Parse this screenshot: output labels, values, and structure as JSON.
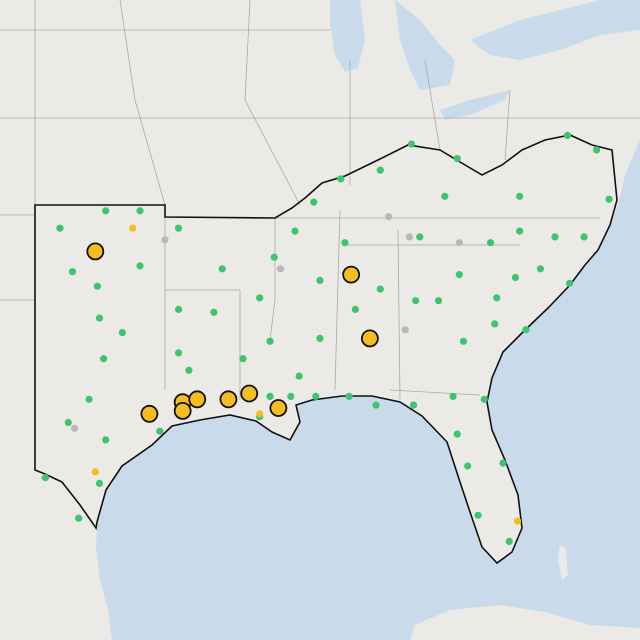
{
  "map": {
    "colors": {
      "green": "#3cc46e",
      "gray": "#b9b9b9",
      "yellow": "#f5bd1f",
      "yellow_large": "#f5bd1f"
    },
    "points": {
      "green": [
        [
          -101.8,
          36.2
        ],
        [
          -99.6,
          36.8
        ],
        [
          -97.95,
          36.8
        ],
        [
          -96.1,
          36.2
        ],
        [
          -101.2,
          34.7
        ],
        [
          -100.0,
          34.2
        ],
        [
          -97.95,
          34.9
        ],
        [
          -94.0,
          34.8
        ],
        [
          -96.1,
          33.4
        ],
        [
          -94.4,
          33.3
        ],
        [
          -99.9,
          33.1
        ],
        [
          -98.8,
          32.6
        ],
        [
          -99.7,
          31.7
        ],
        [
          -96.1,
          31.9
        ],
        [
          -100.4,
          30.3
        ],
        [
          -101.4,
          29.5
        ],
        [
          -99.6,
          28.9
        ],
        [
          -99.9,
          27.4
        ],
        [
          -102.5,
          27.6
        ],
        [
          -100.9,
          26.2
        ],
        [
          -97.0,
          29.2
        ],
        [
          -95.6,
          31.3
        ],
        [
          -93.0,
          31.7
        ],
        [
          -91.7,
          32.3
        ],
        [
          -92.2,
          33.8
        ],
        [
          -91.5,
          35.2
        ],
        [
          -90.5,
          36.1
        ],
        [
          -89.6,
          37.1
        ],
        [
          -88.3,
          37.9
        ],
        [
          -86.4,
          38.2
        ],
        [
          -84.9,
          39.1
        ],
        [
          -82.7,
          38.6
        ],
        [
          -79.7,
          37.3
        ],
        [
          -77.4,
          39.4
        ],
        [
          -76.0,
          38.9
        ],
        [
          -75.4,
          37.2
        ],
        [
          -76.6,
          35.9
        ],
        [
          -78.0,
          35.9
        ],
        [
          -79.7,
          36.1
        ],
        [
          -81.1,
          35.7
        ],
        [
          -83.3,
          37.3
        ],
        [
          -84.5,
          35.9
        ],
        [
          -88.1,
          35.7
        ],
        [
          -89.3,
          34.4
        ],
        [
          -89.3,
          32.4
        ],
        [
          -90.3,
          31.1
        ],
        [
          -91.7,
          30.4
        ],
        [
          -90.7,
          30.4
        ],
        [
          -89.5,
          30.4
        ],
        [
          -87.9,
          30.4
        ],
        [
          -86.6,
          30.1
        ],
        [
          -84.8,
          30.1
        ],
        [
          -83.6,
          33.7
        ],
        [
          -84.7,
          33.7
        ],
        [
          -82.6,
          34.6
        ],
        [
          -80.8,
          33.8
        ],
        [
          -79.9,
          34.5
        ],
        [
          -78.7,
          34.8
        ],
        [
          -77.3,
          34.3
        ],
        [
          -79.4,
          32.7
        ],
        [
          -80.9,
          32.9
        ],
        [
          -82.4,
          32.3
        ],
        [
          -82.9,
          30.4
        ],
        [
          -81.4,
          30.3
        ],
        [
          -82.7,
          29.1
        ],
        [
          -82.2,
          28.0
        ],
        [
          -80.5,
          28.1
        ],
        [
          -81.7,
          26.3
        ],
        [
          -80.2,
          25.4
        ],
        [
          -92.2,
          29.7
        ],
        [
          -86.4,
          34.1
        ],
        [
          -87.6,
          33.4
        ]
      ],
      "gray": [
        [
          -96.75,
          35.8
        ],
        [
          -91.2,
          34.8
        ],
        [
          -86.0,
          36.6
        ],
        [
          -85.0,
          35.9
        ],
        [
          -82.6,
          35.7
        ],
        [
          -85.2,
          32.7
        ],
        [
          -101.1,
          29.3
        ]
      ],
      "yellow": [
        [
          -98.3,
          36.2
        ],
        [
          -92.2,
          29.8
        ],
        [
          -100.1,
          27.8
        ],
        [
          -79.8,
          26.1
        ]
      ],
      "yellow_large": [
        [
          -100.1,
          35.4
        ],
        [
          -87.8,
          34.6
        ],
        [
          -86.9,
          32.4
        ],
        [
          -97.5,
          29.8
        ],
        [
          -95.9,
          30.2
        ],
        [
          -95.9,
          29.9
        ],
        [
          -95.2,
          30.3
        ],
        [
          -93.7,
          30.3
        ],
        [
          -92.7,
          30.5
        ],
        [
          -91.3,
          30.0
        ]
      ]
    }
  }
}
